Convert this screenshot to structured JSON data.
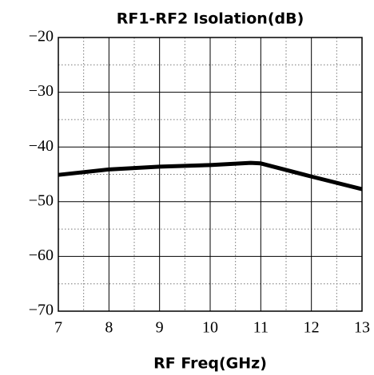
{
  "chart_data": {
    "type": "line",
    "title": "RF1-RF2 Isolation(dB)",
    "x_label": "RF Freq(GHz)",
    "x": [
      7,
      8,
      9,
      10,
      10.8,
      11,
      12,
      13
    ],
    "series": [
      {
        "color": "#000000",
        "values": [
          -45.1,
          -44.1,
          -43.6,
          -43.3,
          -42.9,
          -43.0,
          -45.4,
          -47.7
        ]
      }
    ],
    "xlim": [
      7,
      13
    ],
    "xticks": [
      7,
      8,
      9,
      10,
      11,
      12,
      13
    ],
    "xminorticks": [
      7.5,
      8.5,
      9.5,
      10.5,
      11.5,
      12.5
    ],
    "ylim": [
      -70,
      -20
    ],
    "yticks": [
      {
        "value": -20,
        "label": "−20"
      },
      {
        "value": -30,
        "label": "−30"
      },
      {
        "value": -40,
        "label": "−40"
      },
      {
        "value": -50,
        "label": "−50"
      },
      {
        "value": -60,
        "label": "−60"
      },
      {
        "value": -70,
        "label": "−70"
      }
    ],
    "yminorticks": [
      -25,
      -35,
      -45,
      -55,
      -65
    ],
    "grid": true
  }
}
